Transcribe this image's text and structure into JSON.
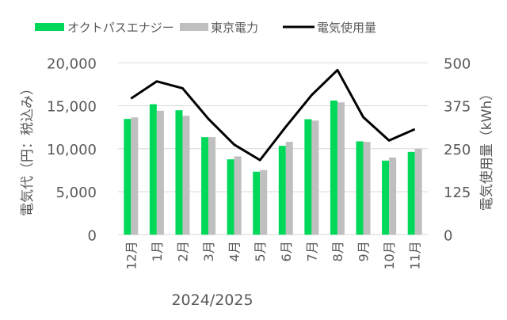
{
  "chart_data": {
    "type": "bar+line",
    "categories": [
      "12月",
      "1月",
      "2月",
      "3月",
      "4月",
      "5月",
      "6月",
      "7月",
      "8月",
      "9月",
      "10月",
      "11月"
    ],
    "xlabel": "2024/2025",
    "ylabel_left": "電気代（円：税込み）",
    "ylabel_right": "電気使用量（kWh）",
    "ylim_left": [
      0,
      20000
    ],
    "ylim_right": [
      0,
      500
    ],
    "yticks_left": [
      "0",
      "5,000",
      "10,000",
      "15,000",
      "20,000"
    ],
    "yticks_right": [
      "0",
      "125",
      "250",
      "375",
      "500"
    ],
    "grid": true,
    "legend_position": "top",
    "series": [
      {
        "name": "オクトパスエナジー",
        "type": "bar",
        "axis": "left",
        "color": "#00d85a",
        "values": [
          13470,
          15180,
          14480,
          11350,
          8770,
          7330,
          10340,
          13440,
          15610,
          10860,
          8620,
          9630
        ]
      },
      {
        "name": "東京電力",
        "type": "bar",
        "axis": "left",
        "color": "#bfbfbf",
        "values": [
          13650,
          14420,
          13830,
          11350,
          9110,
          7520,
          10800,
          13280,
          15400,
          10800,
          8990,
          10000
        ]
      },
      {
        "name": "電気使用量",
        "type": "line",
        "axis": "right",
        "color": "#000000",
        "values": [
          396,
          446,
          426,
          337,
          262,
          217,
          314,
          406,
          479,
          342,
          274,
          307
        ]
      }
    ]
  }
}
